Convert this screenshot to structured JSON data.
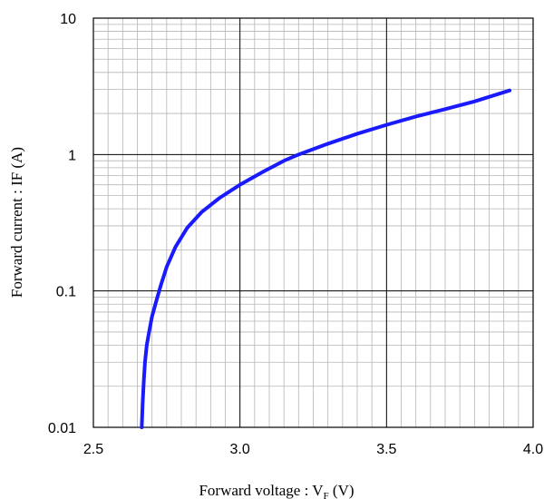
{
  "chart_data": {
    "type": "line",
    "title": "",
    "xlabel_main": "Forward voltage : V",
    "xlabel_sub": "F",
    "xlabel_end": " (V)",
    "ylabel": "Forward current : IF (A)",
    "x_scale": "linear",
    "y_scale": "log",
    "xlim": [
      2.5,
      4.0
    ],
    "ylim": [
      0.01,
      10
    ],
    "x_ticks": [
      "2.5",
      "3.0",
      "3.5",
      "4.0"
    ],
    "y_ticks": [
      "10",
      "1",
      "0.1",
      "0.01"
    ],
    "grid": true,
    "series": [
      {
        "color": "#1a1aff",
        "x": [
          2.665,
          2.668,
          2.672,
          2.676,
          2.682,
          2.69,
          2.7,
          2.715,
          2.73,
          2.75,
          2.78,
          2.82,
          2.87,
          2.93,
          3.0,
          3.08,
          3.15,
          3.2,
          3.3,
          3.4,
          3.5,
          3.6,
          3.7,
          3.8,
          3.92
        ],
        "y": [
          0.01,
          0.015,
          0.022,
          0.03,
          0.04,
          0.05,
          0.065,
          0.085,
          0.11,
          0.15,
          0.21,
          0.29,
          0.38,
          0.48,
          0.6,
          0.75,
          0.9,
          1.0,
          1.2,
          1.42,
          1.65,
          1.9,
          2.15,
          2.45,
          2.95
        ]
      }
    ]
  }
}
